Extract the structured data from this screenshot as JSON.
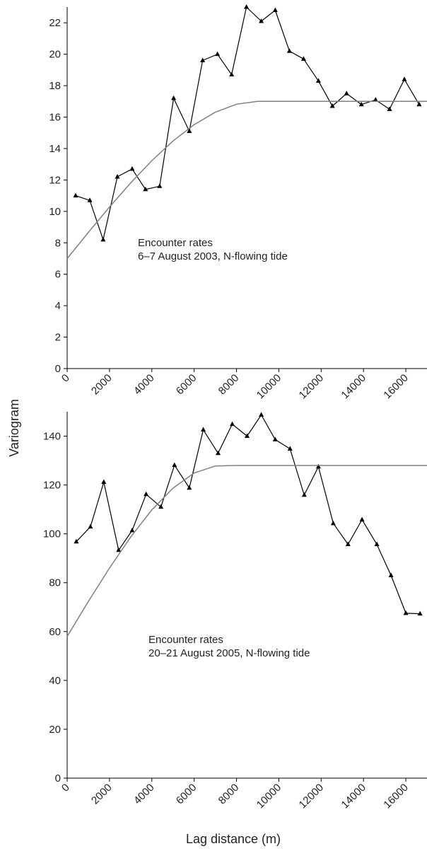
{
  "chart_data": [
    {
      "type": "line",
      "ylabel": "Variogram",
      "annotations": [
        "Encounter rates",
        "6–7 August 2003, N-flowing tide"
      ],
      "xlim": [
        0,
        17000
      ],
      "xticks": [
        0,
        2000,
        4000,
        6000,
        8000,
        10000,
        12000,
        14000,
        16000
      ],
      "ylim": [
        0,
        23
      ],
      "yticks": [
        0,
        2,
        4,
        6,
        8,
        10,
        12,
        14,
        16,
        18,
        20,
        22
      ],
      "series": [
        {
          "color": "#000000",
          "marker": "triangle",
          "x": [
            400,
            1070,
            1700,
            2370,
            3070,
            3700,
            4370,
            5030,
            5770,
            6400,
            7100,
            7770,
            8470,
            9170,
            9830,
            10500,
            11170,
            11870,
            12530,
            13200,
            13900,
            14570,
            15230,
            15930,
            16630
          ],
          "values": [
            11.0,
            10.7,
            8.2,
            12.2,
            12.7,
            11.4,
            11.6,
            17.2,
            15.1,
            19.6,
            20.0,
            18.7,
            23.0,
            22.1,
            22.8,
            20.2,
            19.7,
            18.3,
            16.7,
            17.5,
            16.8,
            17.1,
            16.5,
            18.4,
            16.8
          ]
        },
        {
          "color": "#808080",
          "x": [
            0,
            1000,
            2000,
            3000,
            4000,
            5000,
            6000,
            7000,
            8000,
            9000,
            10000,
            11000,
            12000,
            13000,
            14000,
            15000,
            16000,
            17000
          ],
          "values": [
            7,
            8.66,
            10.28,
            11.81,
            13.23,
            14.48,
            15.52,
            16.31,
            16.82,
            17,
            17,
            17,
            17,
            17,
            17,
            17,
            17,
            17
          ]
        }
      ]
    },
    {
      "type": "line",
      "xlabel": "Lag distance (m)",
      "annotations": [
        "Encounter rates",
        "20–21 August 2005, N-flowing tide"
      ],
      "xlim": [
        0,
        17000
      ],
      "xticks": [
        0,
        2000,
        4000,
        6000,
        8000,
        10000,
        12000,
        14000,
        16000
      ],
      "ylim": [
        0,
        150
      ],
      "yticks": [
        0,
        20,
        40,
        60,
        80,
        100,
        120,
        140
      ],
      "series": [
        {
          "color": "#000000",
          "marker": "triangle",
          "x": [
            430,
            1100,
            1730,
            2430,
            3070,
            3730,
            4430,
            5070,
            5770,
            6430,
            7130,
            7800,
            8500,
            9170,
            9830,
            10530,
            11200,
            11870,
            12570,
            13270,
            13930,
            14630,
            15300,
            16000,
            16670
          ],
          "values": [
            96.8,
            102.9,
            121.2,
            93.3,
            101.4,
            116.2,
            111.0,
            128.1,
            118.8,
            142.6,
            133.0,
            144.9,
            140.0,
            148.7,
            138.6,
            134.8,
            115.9,
            127.5,
            104.3,
            95.7,
            105.8,
            95.7,
            83,
            67.5,
            67.3
          ]
        },
        {
          "color": "#808080",
          "x": [
            0,
            1000,
            2000,
            3000,
            4000,
            5000,
            6000,
            7000,
            8000,
            9000,
            10000,
            11000,
            12000,
            13000,
            14000,
            15000,
            16000,
            17000
          ],
          "values": [
            58,
            72.3,
            86.0,
            98.7,
            109.8,
            118.7,
            124.9,
            127.8,
            128,
            128,
            128,
            128,
            128,
            128,
            128,
            128,
            128,
            128
          ]
        }
      ]
    }
  ]
}
